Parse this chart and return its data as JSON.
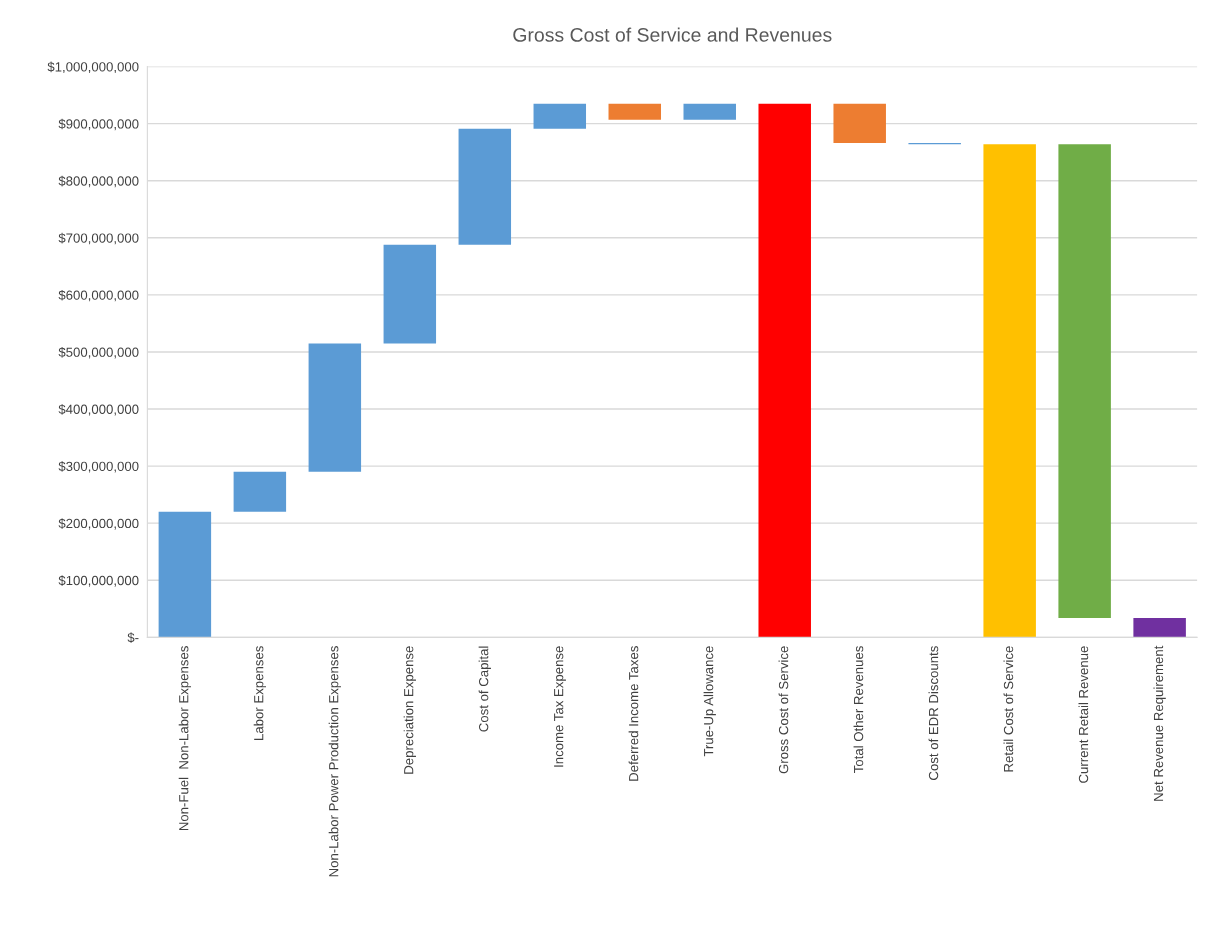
{
  "chart_data": {
    "type": "bar",
    "title": "Gross Cost of Service and Revenues",
    "categories": [
      "Non-Fuel  Non-Labor Expenses",
      "Labor Expenses",
      "Non-Labor Power Production Expenses",
      "Depreciation Expense",
      "Cost of Capital",
      "Income Tax Expense",
      "Deferred Income Taxes",
      "True-Up Allowance",
      "Gross Cost of Service",
      "Total Other Revenues",
      "Cost of EDR Discounts",
      "Retail Cost of Service",
      "Current Retail Revenue",
      "Net Revenue Requirement"
    ],
    "values": [
      220000000,
      70000000,
      225000000,
      173000000,
      203000000,
      44000000,
      -28000000,
      28000000,
      935000000,
      -69000000,
      -2000000,
      864000000,
      -830000000,
      34000000
    ],
    "base": [
      0,
      220000000,
      290000000,
      515000000,
      688000000,
      891000000,
      935000000,
      907000000,
      0,
      935000000,
      866000000,
      0,
      864000000,
      0
    ],
    "colors": [
      "#5b9bd5",
      "#5b9bd5",
      "#5b9bd5",
      "#5b9bd5",
      "#5b9bd5",
      "#5b9bd5",
      "#ed7d31",
      "#5b9bd5",
      "#ff0000",
      "#ed7d31",
      "#5b9bd5",
      "#ffc000",
      "#70ad47",
      "#7030a0"
    ],
    "ylim": [
      0,
      1000000000
    ],
    "yticks": [
      {
        "value": 0,
        "label": "$-"
      },
      {
        "value": 100000000,
        "label": "$100,000,000"
      },
      {
        "value": 200000000,
        "label": "$200,000,000"
      },
      {
        "value": 300000000,
        "label": "$300,000,000"
      },
      {
        "value": 400000000,
        "label": "$400,000,000"
      },
      {
        "value": 500000000,
        "label": "$500,000,000"
      },
      {
        "value": 600000000,
        "label": "$600,000,000"
      },
      {
        "value": 700000000,
        "label": "$700,000,000"
      },
      {
        "value": 800000000,
        "label": "$800,000,000"
      },
      {
        "value": 900000000,
        "label": "$900,000,000"
      },
      {
        "value": 1000000000,
        "label": "$1,000,000,000"
      }
    ],
    "grid": "y",
    "legend": false
  }
}
